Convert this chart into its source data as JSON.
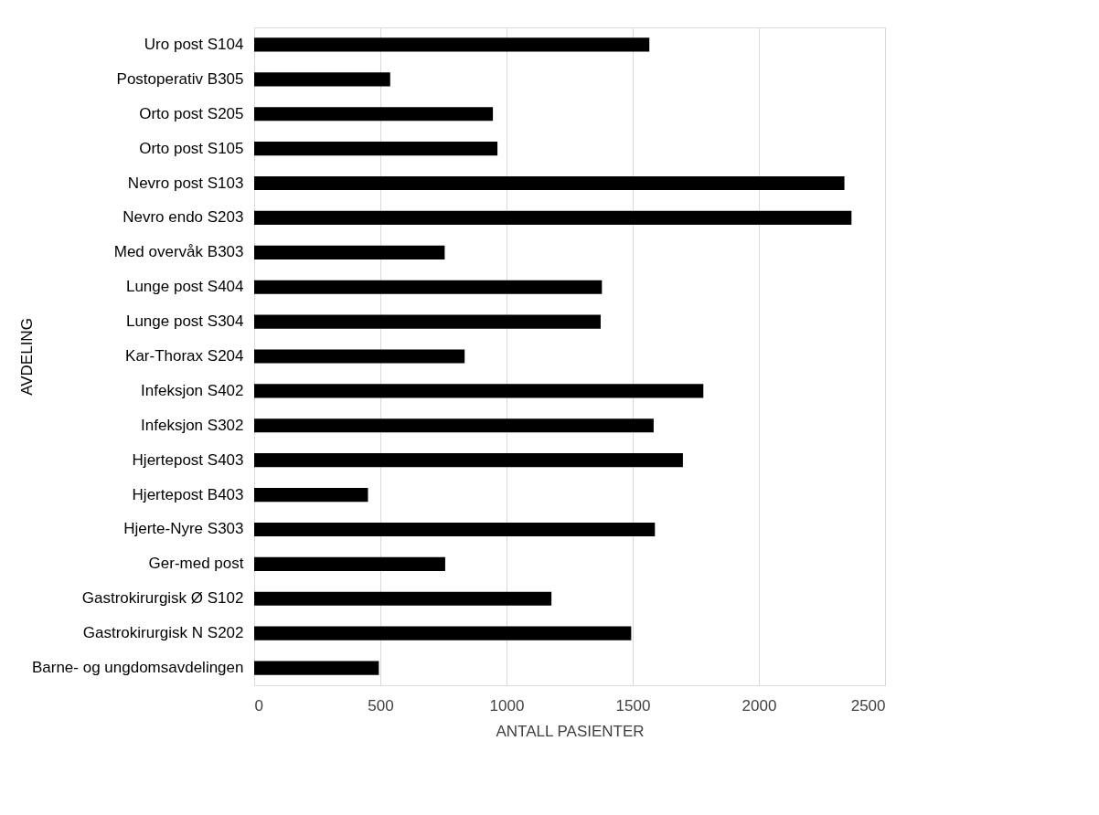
{
  "chart_data": {
    "type": "bar",
    "orientation": "horizontal",
    "xlabel": "ANTALL PASIENTER",
    "ylabel": "AVDELING",
    "categories": [
      "Uro post S104",
      "Postoperativ B305",
      "Orto post S205",
      "Orto post S105",
      "Nevro post S103",
      "Nevro endo S203",
      "Med overvåk B303",
      "Lunge post S404",
      "Lunge post S304",
      "Kar-Thorax S204",
      "Infeksjon S402",
      "Infeksjon S302",
      "Hjertepost S403",
      "Hjertepost B403",
      "Hjerte-Nyre S303",
      "Ger-med post",
      "Gastrokirurgisk Ø S102",
      "Gastrokirurgisk N S202",
      "Barne- og ungdomsavdelingen"
    ],
    "values": [
      1566,
      539,
      946,
      964,
      2339,
      2367,
      755,
      1378,
      1373,
      834,
      1780,
      1583,
      1699,
      451,
      1588,
      757,
      1178,
      1494,
      494
    ],
    "color": "#000000",
    "xlim": [
      0,
      2500
    ],
    "xticks": [
      0,
      500,
      1000,
      1500,
      2000,
      2500
    ],
    "grid": "x"
  }
}
